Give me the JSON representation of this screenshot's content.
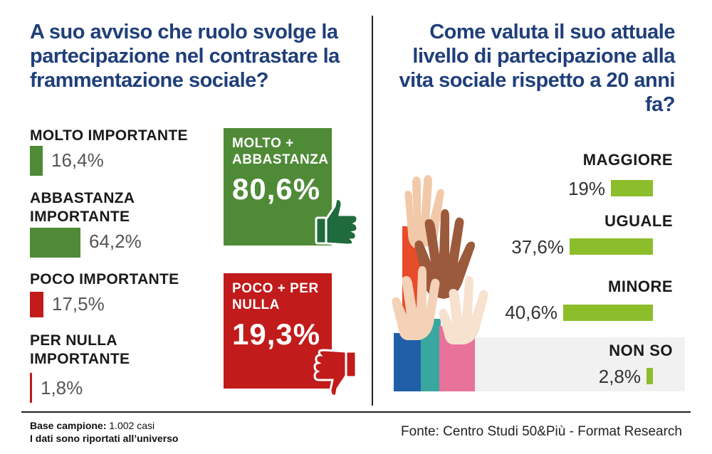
{
  "left_title": "A suo avviso che ruolo svolge la partecipazione nel contrastare la frammentazione sociale?",
  "right_title": "Come valuta il suo attuale livello di partecipazione alla vita sociale rispetto a 20 anni fa?",
  "chart_data": [
    {
      "type": "bar",
      "title": "A suo avviso che ruolo svolge la partecipazione nel contrastare la frammentazione sociale?",
      "categories": [
        "MOLTO IMPORTANTE",
        "ABBASTANZA IMPORTANTE",
        "POCO IMPORTANTE",
        "PER NULLA IMPORTANTE"
      ],
      "values": [
        16.4,
        64.2,
        17.5,
        1.8
      ],
      "value_labels": [
        "16,4%",
        "64,2%",
        "17,5%",
        "1,8%"
      ],
      "colors": [
        "#4f8a37",
        "#4f8a37",
        "#c11b1b",
        "#c11b1b"
      ],
      "summary": [
        {
          "label": "MOLTO + ABBASTANZA",
          "value": 80.6,
          "value_label": "80,6%",
          "color": "#4f8a37",
          "icon": "thumbs-up-icon"
        },
        {
          "label": "POCO + PER NULLA",
          "value": 19.3,
          "value_label": "19,3%",
          "color": "#c11b1b",
          "icon": "thumbs-down-icon"
        }
      ]
    },
    {
      "type": "bar",
      "title": "Come valuta il suo attuale livello di partecipazione alla vita sociale rispetto a 20 anni fa?",
      "categories": [
        "MAGGIORE",
        "UGUALE",
        "MINORE",
        "NON SO"
      ],
      "values": [
        19,
        37.6,
        40.6,
        2.8
      ],
      "value_labels": [
        "19%",
        "37,6%",
        "40,6%",
        "2,8%"
      ],
      "color": "#8cbd2a"
    }
  ],
  "footer": {
    "base_label": "Base campione:",
    "base_value": "1.002 casi",
    "note": "I dati sono riportati all’universo",
    "source": "Fonte: Centro Studi 50&Più - Format Research"
  },
  "colors": {
    "title": "#1f3f7a",
    "green": "#4f8a37",
    "red": "#c11b1b",
    "lime": "#8cbd2a"
  }
}
